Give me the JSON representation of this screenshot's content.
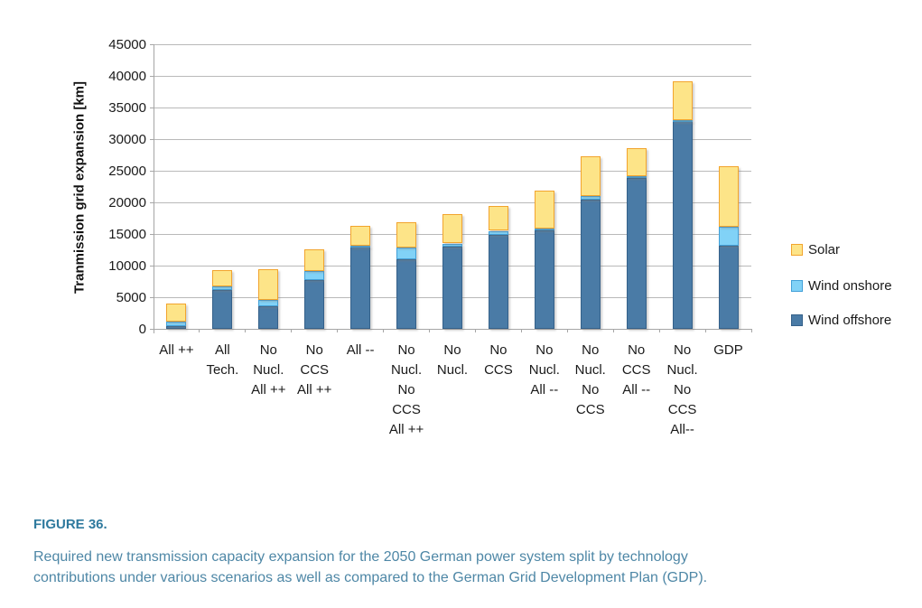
{
  "figure": {
    "label": "FIGURE 36.",
    "caption_lines": [
      "Required new transmission capacity expansion for the 2050 German power system split by technology",
      "contributions under various scenarios as well as compared to the German Grid Development Plan (GDP)."
    ]
  },
  "chart_data": {
    "type": "bar",
    "stacked": true,
    "title": "",
    "xlabel": "",
    "ylabel": "Tranmission grid expansion [km]",
    "ylim": [
      0,
      45000
    ],
    "ytick_step": 5000,
    "yticks": [
      0,
      5000,
      10000,
      15000,
      20000,
      25000,
      30000,
      35000,
      40000,
      45000
    ],
    "grid": true,
    "legend_position": "right",
    "categories": [
      "All ++",
      "All Tech.",
      "No Nucl. All ++",
      "No CCS All ++",
      "All --",
      "No Nucl. No CCS All ++",
      "No Nucl.",
      "No CCS",
      "No Nucl. All --",
      "No Nucl. No CCS",
      "No CCS All --",
      "No Nucl. No CCS All--",
      "GDP"
    ],
    "category_label_lines": [
      [
        "All ++"
      ],
      [
        "All",
        "Tech."
      ],
      [
        "No",
        "Nucl.",
        "All ++"
      ],
      [
        "No",
        "CCS",
        "All ++"
      ],
      [
        "All --"
      ],
      [
        "No",
        "Nucl.",
        "No",
        "CCS",
        "All ++"
      ],
      [
        "No",
        "Nucl."
      ],
      [
        "No",
        "CCS"
      ],
      [
        "No",
        "Nucl.",
        "All --"
      ],
      [
        "No",
        "Nucl.",
        "No",
        "CCS"
      ],
      [
        "No",
        "CCS",
        "All --"
      ],
      [
        "No",
        "Nucl.",
        "No",
        "CCS",
        "All--"
      ],
      [
        "GDP"
      ]
    ],
    "series": [
      {
        "name": "Wind offshore",
        "color": "#4a7ba6",
        "border_color": "#35618a",
        "values": [
          400,
          6200,
          3600,
          7700,
          13000,
          11000,
          13000,
          14900,
          15600,
          20500,
          23900,
          32800,
          13200
        ]
      },
      {
        "name": "Wind onshore",
        "color": "#81d2f7",
        "border_color": "#42a0d8",
        "values": [
          700,
          500,
          1000,
          1400,
          200,
          1800,
          500,
          600,
          200,
          500,
          200,
          200,
          3000
        ]
      },
      {
        "name": "Solar",
        "color": "#fde488",
        "border_color": "#f2a42d",
        "values": [
          2900,
          2600,
          4900,
          3500,
          3100,
          4100,
          4700,
          3900,
          6100,
          6300,
          4500,
          6100,
          9500
        ]
      }
    ],
    "totals": [
      4000,
      9300,
      9500,
      12600,
      16300,
      16900,
      18200,
      19400,
      21900,
      27300,
      28600,
      39100,
      25700
    ],
    "legend_order_top_to_bottom": [
      "Solar",
      "Wind onshore",
      "Wind offshore"
    ]
  }
}
